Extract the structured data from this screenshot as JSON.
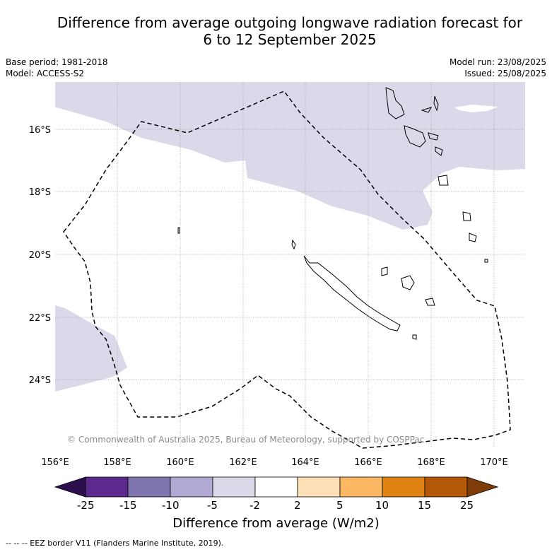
{
  "title_line1": "Difference from average outgoing longwave radiation forecast for",
  "title_line2": "6 to 12 September 2025",
  "base_period": "Base period: 1981-2018",
  "model": "Model: ACCESS-S2",
  "model_run": "Model run: 23/08/2025",
  "issued": "Issued: 25/08/2025",
  "copyright": "© Commonwealth of Australia 2025, Bureau of Meteorology, supported by COSPPac",
  "lat_ticks": [
    "16°S",
    "18°S",
    "20°S",
    "22°S",
    "24°S"
  ],
  "lon_ticks": [
    "156°E",
    "158°E",
    "160°E",
    "162°E",
    "164°E",
    "166°E",
    "168°E",
    "170°E"
  ],
  "colorbar": {
    "labels": [
      "-25",
      "-15",
      "-10",
      "-5",
      "-2",
      "2",
      "5",
      "10",
      "15",
      "25"
    ],
    "colors": [
      "#2d0f4e",
      "#5b2a8c",
      "#8074ae",
      "#b1a9d3",
      "#d9d9ea",
      "#ffffff",
      "#fee0b6",
      "#fdb863",
      "#e08214",
      "#b35806",
      "#7f3b08"
    ],
    "title": "Difference from average (W/m2)"
  },
  "footnote": "--  --  -- EEZ border V11 (Flanders Marine Institute, 2019).",
  "map_colors": {
    "anomaly_minus_2_to_minus_5": "#d9d9ea",
    "coastline": "#000000",
    "eez": "#000000",
    "grid": "#999999"
  }
}
